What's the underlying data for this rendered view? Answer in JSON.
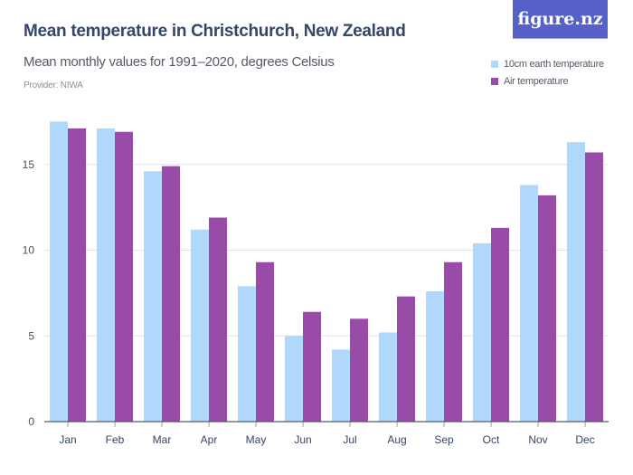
{
  "header": {
    "title": "Mean temperature in Christchurch, New Zealand",
    "subtitle": "Mean monthly values for 1991–2020, degrees Celsius",
    "provider": "Provider: NIWA",
    "logo": "figure.nz"
  },
  "colors": {
    "series_10cm": "#b0d8fb",
    "series_air": "#984ca8",
    "grid": "#e3e3e3",
    "axis": "#555b66",
    "logo_bg": "#5561c8"
  },
  "chart_data": {
    "type": "bar",
    "title": "Mean temperature in Christchurch, New Zealand",
    "subtitle": "Mean monthly values for 1991–2020, degrees Celsius",
    "xlabel": "",
    "ylabel": "",
    "ylim": [
      0,
      17.9
    ],
    "yticks": [
      0,
      5,
      10,
      15
    ],
    "grid": true,
    "legend_position": "top-right",
    "categories": [
      "Jan",
      "Feb",
      "Mar",
      "Apr",
      "May",
      "Jun",
      "Jul",
      "Aug",
      "Sep",
      "Oct",
      "Nov",
      "Dec"
    ],
    "series": [
      {
        "name": "10cm earth temperature",
        "values": [
          17.5,
          17.1,
          14.6,
          11.2,
          7.9,
          5.0,
          4.2,
          5.2,
          7.6,
          10.4,
          13.8,
          16.3
        ]
      },
      {
        "name": "Air temperature",
        "values": [
          17.1,
          16.9,
          14.9,
          11.9,
          9.3,
          6.4,
          6.0,
          7.3,
          9.3,
          11.3,
          13.2,
          15.7
        ]
      }
    ]
  }
}
